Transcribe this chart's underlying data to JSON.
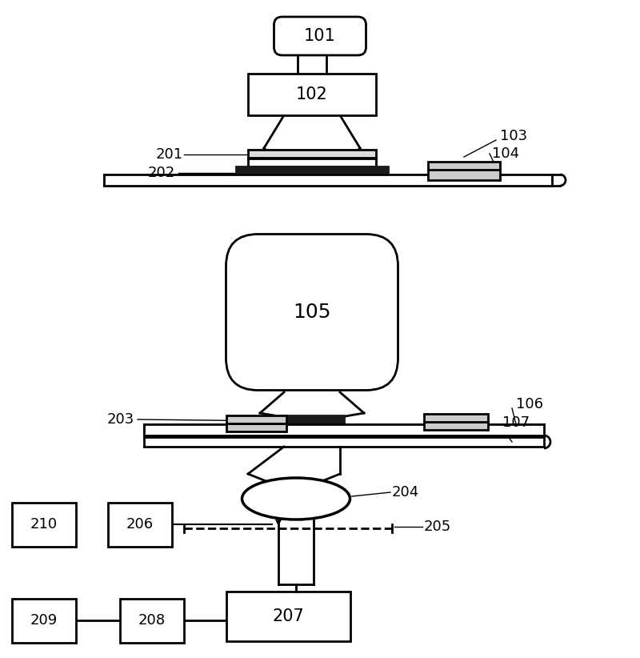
{
  "bg_color": "#ffffff",
  "lc": "#000000",
  "lw": 2.0,
  "fs": 13,
  "figsize": [
    8.0,
    8.22
  ],
  "dpi": 100
}
